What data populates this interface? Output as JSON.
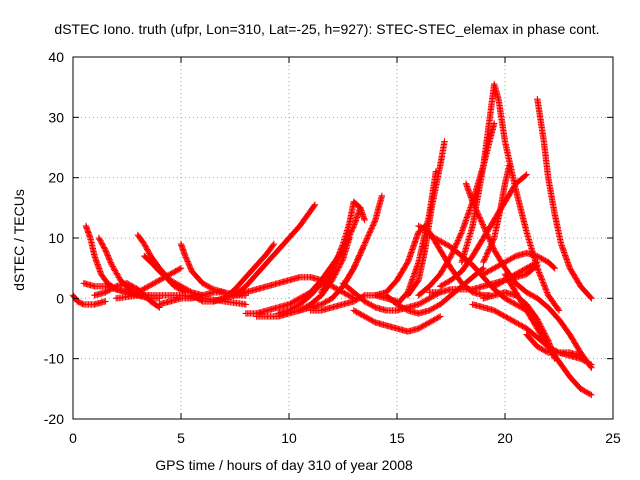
{
  "chart_data": {
    "type": "scatter",
    "title": "dSTEC Iono. truth (ufpr, Lon=310, Lat=-25, h=927): STEC-STEC_elemax in phase cont.",
    "xlabel": "GPS time / hours of day 310 of year 2008",
    "ylabel": "dSTEC  / TECUs",
    "xlim": [
      0,
      25
    ],
    "ylim": [
      -20,
      40
    ],
    "xticks": [
      "0",
      "5",
      "10",
      "15",
      "20",
      "25"
    ],
    "yticks": [
      "-20",
      "-10",
      "0",
      "10",
      "20",
      "30",
      "40"
    ],
    "grid": true,
    "marker": "plus",
    "color": "#ff0000",
    "series": [
      {
        "x": [
          0.0,
          0.2,
          0.5,
          1.0,
          1.5
        ],
        "y": [
          0.5,
          -0.5,
          -1.0,
          -1.0,
          -0.5
        ]
      },
      {
        "x": [
          0.6,
          0.8,
          1.0,
          1.3,
          1.6,
          2.0,
          2.5,
          3.0,
          3.5
        ],
        "y": [
          12.0,
          10.0,
          7.0,
          4.0,
          2.5,
          1.5,
          1.0,
          0.5,
          0.5
        ]
      },
      {
        "x": [
          0.5,
          1.0,
          1.5,
          2.0,
          2.5,
          3.0
        ],
        "y": [
          2.5,
          2.0,
          2.0,
          1.5,
          1.0,
          0.5
        ]
      },
      {
        "x": [
          1.2,
          1.5,
          1.8,
          2.2,
          2.6,
          3.0,
          3.5,
          4.0
        ],
        "y": [
          10.0,
          8.0,
          5.5,
          3.0,
          1.5,
          0.5,
          0.0,
          0.0
        ]
      },
      {
        "x": [
          1.0,
          1.5,
          2.0,
          2.5,
          3.0,
          3.3,
          3.6,
          4.0
        ],
        "y": [
          0.5,
          1.0,
          2.0,
          2.5,
          1.5,
          0.5,
          -0.5,
          -1.5
        ]
      },
      {
        "x": [
          3.0,
          3.3,
          3.6,
          4.0,
          4.5,
          5.0,
          5.5,
          6.0
        ],
        "y": [
          10.5,
          9.0,
          7.0,
          5.0,
          3.0,
          2.0,
          1.0,
          0.5
        ]
      },
      {
        "x": [
          3.3,
          3.6,
          4.0,
          4.3,
          4.7,
          5.2
        ],
        "y": [
          7.0,
          6.0,
          4.5,
          3.5,
          2.0,
          1.0
        ]
      },
      {
        "x": [
          2.0,
          3.0,
          4.0,
          5.0,
          6.0,
          7.0,
          8.0
        ],
        "y": [
          0.0,
          0.5,
          0.5,
          0.5,
          0.0,
          -0.5,
          -1.0
        ]
      },
      {
        "x": [
          3.0,
          3.5,
          4.0,
          4.5,
          5.0
        ],
        "y": [
          1.0,
          2.0,
          3.0,
          4.0,
          5.0
        ]
      },
      {
        "x": [
          5.0,
          5.2,
          5.5,
          6.0,
          6.5,
          7.0,
          7.5,
          8.0
        ],
        "y": [
          9.0,
          7.0,
          4.5,
          2.5,
          1.5,
          1.0,
          0.5,
          0.5
        ]
      },
      {
        "x": [
          4.0,
          4.5,
          5.0,
          5.5,
          6.0,
          6.5,
          7.0
        ],
        "y": [
          -1.0,
          -0.5,
          0.0,
          0.0,
          0.5,
          1.0,
          1.0
        ]
      },
      {
        "x": [
          5.5,
          6.0,
          6.5,
          7.0,
          7.5,
          8.0,
          8.5,
          9.0,
          9.3
        ],
        "y": [
          0.5,
          -0.5,
          -0.5,
          0.0,
          1.5,
          3.5,
          5.5,
          7.5,
          9.0
        ]
      },
      {
        "x": [
          6.5,
          7.0,
          7.5,
          8.0,
          8.5,
          9.0,
          9.5,
          10.0,
          10.5,
          11.0,
          11.5,
          12.0,
          12.5,
          13.0
        ],
        "y": [
          -0.5,
          0.0,
          0.5,
          1.0,
          1.5,
          2.0,
          2.5,
          3.0,
          3.5,
          3.5,
          3.0,
          2.0,
          1.0,
          0.0
        ]
      },
      {
        "x": [
          7.5,
          8.0,
          8.5,
          9.0,
          9.5,
          10.0,
          10.5,
          11.0,
          11.2
        ],
        "y": [
          0.5,
          2.0,
          4.0,
          6.0,
          8.0,
          10.0,
          12.0,
          14.5,
          15.5
        ]
      },
      {
        "x": [
          8.0,
          8.5,
          9.0,
          9.5,
          10.0,
          10.5,
          11.0,
          11.5,
          12.0,
          12.5
        ],
        "y": [
          -2.5,
          -2.5,
          -2.0,
          -1.5,
          -1.0,
          0.0,
          1.0,
          3.0,
          5.5,
          8.0
        ]
      },
      {
        "x": [
          8.5,
          9.0,
          9.5,
          10.0,
          10.5,
          11.0,
          11.5,
          12.0,
          12.5,
          12.8
        ],
        "y": [
          -3.0,
          -3.0,
          -3.0,
          -2.5,
          -2.0,
          -1.0,
          0.5,
          3.0,
          6.5,
          10.0
        ]
      },
      {
        "x": [
          9.5,
          10.0,
          10.5,
          11.0,
          11.5,
          12.0,
          12.5,
          13.0,
          13.3
        ],
        "y": [
          -2.5,
          -2.0,
          -1.0,
          0.5,
          2.5,
          5.0,
          8.0,
          12.0,
          15.0
        ]
      },
      {
        "x": [
          10.5,
          11.0,
          11.5,
          12.0,
          12.5,
          13.0,
          13.5
        ],
        "y": [
          -2.0,
          -1.5,
          -1.0,
          0.0,
          2.0,
          5.0,
          9.0
        ]
      },
      {
        "x": [
          11.5,
          12.0,
          12.5,
          12.8,
          13.0,
          13.3,
          13.5
        ],
        "y": [
          1.0,
          4.5,
          9.0,
          12.5,
          16.0,
          15.0,
          13.0
        ]
      },
      {
        "x": [
          11.0,
          11.5,
          12.0,
          12.5,
          13.0,
          13.5,
          14.0,
          14.5,
          15.0
        ],
        "y": [
          -2.0,
          -2.0,
          -1.5,
          -1.0,
          -0.5,
          0.5,
          0.5,
          0.0,
          -0.5
        ]
      },
      {
        "x": [
          12.5,
          13.0,
          13.5,
          14.0,
          14.3
        ],
        "y": [
          2.0,
          5.0,
          9.0,
          13.0,
          17.0
        ]
      },
      {
        "x": [
          13.0,
          13.5,
          14.0,
          14.5,
          15.0,
          15.5,
          16.0,
          16.5,
          17.0
        ],
        "y": [
          -2.0,
          -3.0,
          -4.0,
          -4.5,
          -5.0,
          -5.5,
          -5.0,
          -4.0,
          -3.0
        ]
      },
      {
        "x": [
          12.5,
          13.0,
          13.5,
          14.0,
          14.5,
          15.0,
          15.5,
          16.0,
          16.5,
          17.0
        ],
        "y": [
          2.5,
          1.0,
          -0.5,
          -1.5,
          -2.0,
          -2.0,
          -1.5,
          -1.0,
          0.0,
          1.0
        ]
      },
      {
        "x": [
          14.5,
          15.0,
          15.5,
          16.0,
          16.5,
          17.0,
          17.5,
          18.0,
          18.5,
          19.0
        ],
        "y": [
          0.5,
          -1.0,
          -2.0,
          -2.5,
          -2.0,
          -1.0,
          0.5,
          2.0,
          3.5,
          5.0
        ]
      },
      {
        "x": [
          14.0,
          14.5,
          15.0,
          15.5,
          15.8,
          16.0,
          16.3
        ],
        "y": [
          0.5,
          1.0,
          3.0,
          6.0,
          9.0,
          11.0,
          12.0
        ]
      },
      {
        "x": [
          15.0,
          15.5,
          16.0,
          16.5,
          16.8
        ],
        "y": [
          -1.0,
          1.0,
          6.0,
          14.0,
          21.0
        ]
      },
      {
        "x": [
          15.5,
          16.0,
          16.3,
          16.6,
          17.0,
          17.2
        ],
        "y": [
          0.5,
          3.0,
          8.0,
          15.0,
          22.0,
          26.0
        ]
      },
      {
        "x": [
          16.0,
          16.5,
          17.0,
          17.5,
          18.0,
          18.5,
          19.0,
          19.3
        ],
        "y": [
          12.0,
          11.0,
          8.0,
          5.0,
          2.5,
          1.0,
          0.5,
          0.5
        ]
      },
      {
        "x": [
          16.5,
          17.0,
          17.5,
          18.0,
          18.5,
          19.0,
          19.5,
          20.0,
          20.5,
          21.0
        ],
        "y": [
          10.5,
          9.5,
          8.5,
          7.0,
          5.5,
          3.5,
          1.5,
          0.0,
          -1.0,
          -2.0
        ]
      },
      {
        "x": [
          16.0,
          16.5,
          17.0,
          17.5,
          18.0,
          18.5,
          19.0,
          19.5
        ],
        "y": [
          0.5,
          2.0,
          4.0,
          7.0,
          11.0,
          16.0,
          22.0,
          29.0
        ]
      },
      {
        "x": [
          17.0,
          17.5,
          18.0,
          18.5,
          19.0,
          19.5,
          20.0,
          20.5,
          21.0
        ],
        "y": [
          2.0,
          3.0,
          4.5,
          7.0,
          10.0,
          13.0,
          16.0,
          19.0,
          20.5
        ]
      },
      {
        "x": [
          18.2,
          18.5,
          19.0,
          19.5,
          20.0,
          20.5,
          21.0,
          21.5,
          22.0,
          22.5,
          23.0,
          23.5,
          24.0
        ],
        "y": [
          19.0,
          16.0,
          12.0,
          8.0,
          5.0,
          2.5,
          1.0,
          0.0,
          -1.5,
          -3.5,
          -6.0,
          -9.0,
          -11.5
        ]
      },
      {
        "x": [
          18.0,
          18.5,
          19.0,
          19.3,
          19.5,
          19.7,
          20.0,
          20.5,
          21.0,
          21.5,
          22.0,
          22.5
        ],
        "y": [
          6.0,
          12.0,
          22.0,
          30.0,
          35.5,
          33.0,
          26.0,
          18.0,
          11.0,
          5.0,
          0.5,
          -2.0
        ]
      },
      {
        "x": [
          19.0,
          19.5,
          19.8,
          20.0,
          20.2
        ],
        "y": [
          6.0,
          10.0,
          15.0,
          19.0,
          22.0
        ]
      },
      {
        "x": [
          19.0,
          19.5,
          20.0,
          20.5,
          21.0,
          21.5,
          22.0,
          22.3
        ],
        "y": [
          0.0,
          0.5,
          1.0,
          0.5,
          -1.0,
          -3.5,
          -7.0,
          -10.0
        ]
      },
      {
        "x": [
          20.0,
          20.5,
          21.0,
          21.5,
          22.0,
          22.5,
          23.0,
          23.5,
          24.0
        ],
        "y": [
          4.0,
          1.0,
          -2.0,
          -5.0,
          -8.0,
          -10.5,
          -13.0,
          -15.0,
          -16.0
        ]
      },
      {
        "x": [
          19.0,
          19.5,
          20.0,
          20.5,
          21.0,
          21.5,
          22.0,
          22.3
        ],
        "y": [
          4.0,
          5.0,
          6.0,
          7.0,
          7.5,
          7.0,
          6.0,
          5.0
        ]
      },
      {
        "x": [
          21.0,
          21.5,
          22.0,
          22.5,
          23.0,
          23.5,
          24.0
        ],
        "y": [
          -6.0,
          -8.0,
          -9.0,
          -9.0,
          -9.5,
          -10.0,
          -11.0
        ]
      },
      {
        "x": [
          21.5,
          21.8,
          22.0,
          22.3,
          22.6,
          23.0,
          23.5,
          24.0
        ],
        "y": [
          33.0,
          26.0,
          20.0,
          14.0,
          9.0,
          5.0,
          2.0,
          0.0
        ]
      },
      {
        "x": [
          18.5,
          19.0,
          19.5,
          20.0,
          20.5,
          21.0,
          21.5,
          22.0,
          22.5,
          23.0,
          23.5
        ],
        "y": [
          -1.0,
          -1.5,
          -2.0,
          -3.0,
          -4.0,
          -5.0,
          -6.5,
          -8.0,
          -9.0,
          -9.0,
          -9.5
        ]
      },
      {
        "x": [
          19.5,
          20.0,
          20.5,
          21.0,
          21.5
        ],
        "y": [
          2.0,
          3.0,
          4.0,
          5.0,
          6.0
        ]
      },
      {
        "x": [
          16.5,
          17.0,
          17.5,
          18.0,
          18.5,
          19.0,
          19.5,
          20.0,
          20.5,
          21.0,
          21.5
        ],
        "y": [
          1.0,
          1.0,
          1.5,
          1.5,
          1.5,
          2.0,
          2.5,
          3.0,
          3.5,
          4.0,
          5.5
        ]
      }
    ]
  }
}
